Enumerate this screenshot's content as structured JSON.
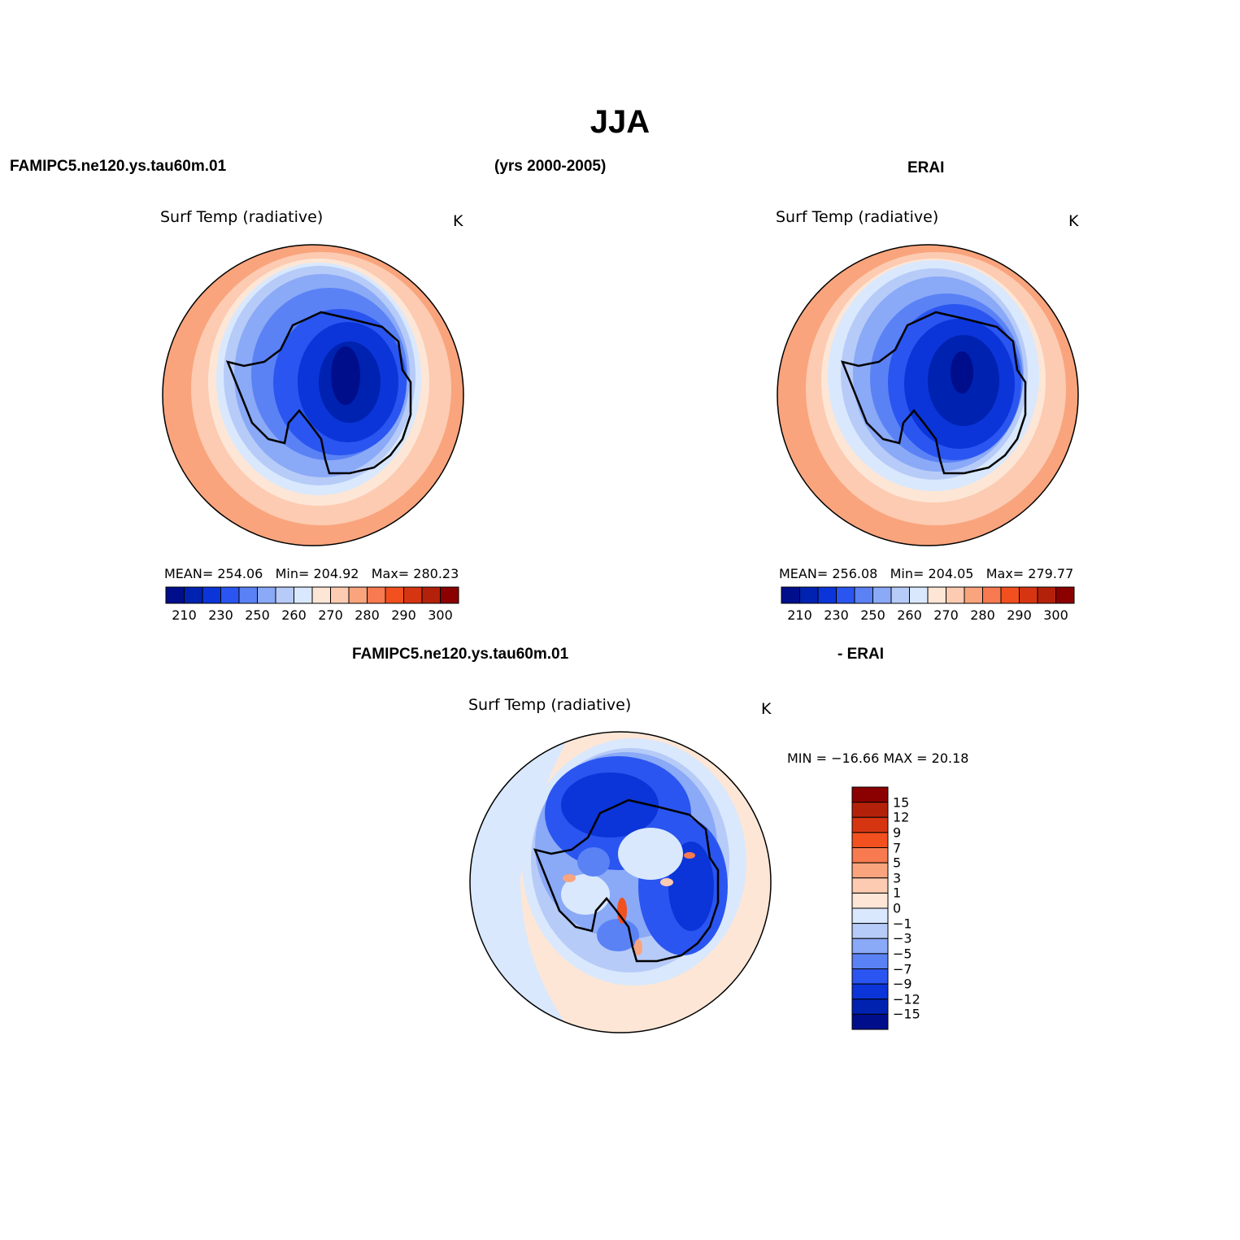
{
  "page": {
    "title": "JJA",
    "left_case": "FAMIPC5.ne120.ys.tau60m.01",
    "years": "(yrs 2000-2005)",
    "right_case": "ERAI",
    "diff_case": "FAMIPC5.ne120.ys.tau60m.01",
    "diff_ref": "- ERAI"
  },
  "panels": {
    "model": {
      "variable": "Surf Temp (radiative)",
      "units": "K",
      "stats": {
        "mean_label": "MEAN=",
        "mean": "254.06",
        "min_label": "Min=",
        "min": "204.92",
        "max_label": "Max=",
        "max": "280.23"
      }
    },
    "obs": {
      "variable": "Surf Temp (radiative)",
      "units": "K",
      "stats": {
        "mean_label": "MEAN=",
        "mean": "256.08",
        "min_label": "Min=",
        "min": "204.05",
        "max_label": "Max=",
        "max": "279.77"
      }
    },
    "diff": {
      "variable": "Surf Temp (radiative)",
      "units": "K",
      "minmax": "MIN = −16.66 MAX =   20.18"
    }
  },
  "colorbars": {
    "absolute": {
      "colors": [
        "#000e8c",
        "#0022b0",
        "#0b35d8",
        "#2a55f0",
        "#5a82f5",
        "#8aa9f7",
        "#b7cbf8",
        "#d9e8fd",
        "#fde6d6",
        "#fccbb1",
        "#f9a47d",
        "#f77a50",
        "#f2501f",
        "#d63511",
        "#b4210a",
        "#8b0000"
      ],
      "labels": [
        "210",
        "230",
        "250",
        "260",
        "270",
        "280",
        "290",
        "300"
      ]
    },
    "difference": {
      "colors": [
        "#000e8c",
        "#0022b0",
        "#0b35d8",
        "#2a55f0",
        "#5a82f5",
        "#8aa9f7",
        "#b7cbf8",
        "#d9e8fd",
        "#fde6d6",
        "#fccbb1",
        "#f9a47d",
        "#f77a50",
        "#f2501f",
        "#d63511",
        "#b4210a",
        "#8b0000"
      ],
      "labels": [
        "15",
        "12",
        "9",
        "7",
        "5",
        "3",
        "1",
        "0",
        "−1",
        "−3",
        "−5",
        "−7",
        "−9",
        "−12",
        "−15"
      ]
    }
  }
}
